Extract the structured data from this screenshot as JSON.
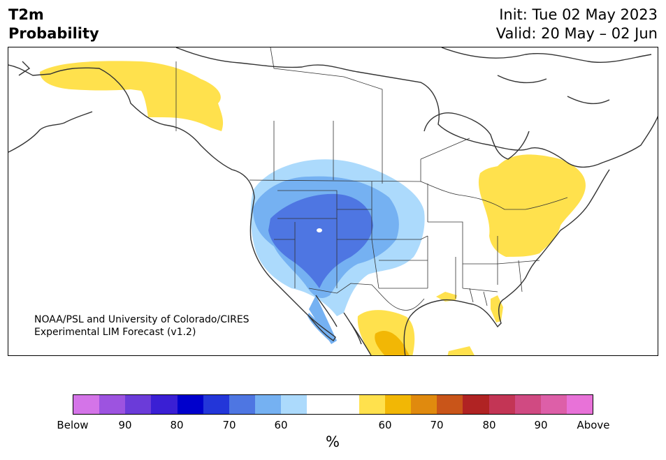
{
  "header": {
    "title_line1": "T2m",
    "title_line2": "Probability",
    "init": "Init: Tue 02 May 2023",
    "valid": "Valid: 20 May – 02 Jun"
  },
  "map": {
    "credit_line1": "NOAA/PSL and University of Colorado/CIRES",
    "credit_line2": "Experimental LIM Forecast (v1.2)",
    "regions": [
      {
        "name": "alaska-yukon-above",
        "category": "above-60",
        "color": "#ffe14d"
      },
      {
        "name": "great-lakes-northeast-above",
        "category": "above-60",
        "color": "#ffe14d"
      },
      {
        "name": "gulf-coast-above",
        "category": "above-60",
        "color": "#ffe14d"
      },
      {
        "name": "florida-above",
        "category": "above-60",
        "color": "#ffe14d"
      },
      {
        "name": "mexico-above",
        "category": "above-60",
        "color": "#ffe14d"
      },
      {
        "name": "mexico-above-70",
        "category": "above-70",
        "color": "#f2b705"
      },
      {
        "name": "west-below-60",
        "category": "below-60",
        "color": "#acdafc"
      },
      {
        "name": "west-below-70",
        "category": "below-70",
        "color": "#75b1f2"
      },
      {
        "name": "west-below-80",
        "category": "below-80",
        "color": "#4e76e2"
      }
    ]
  },
  "colorbar": {
    "colors": [
      "#d474e8",
      "#9d53e0",
      "#6b3bd9",
      "#3a1fd4",
      "#0000cc",
      "#2336d9",
      "#4e76e2",
      "#75b1f2",
      "#acdafc",
      "#ffffff",
      "#ffffff",
      "#ffe14d",
      "#f2b705",
      "#e08a0e",
      "#c95519",
      "#b02323",
      "#c33555",
      "#d04a82",
      "#dd5fa8",
      "#e872d8"
    ],
    "ticks": [
      "Below",
      "90",
      "80",
      "70",
      "60",
      "60",
      "70",
      "80",
      "90",
      "Above"
    ],
    "unit": "%"
  }
}
